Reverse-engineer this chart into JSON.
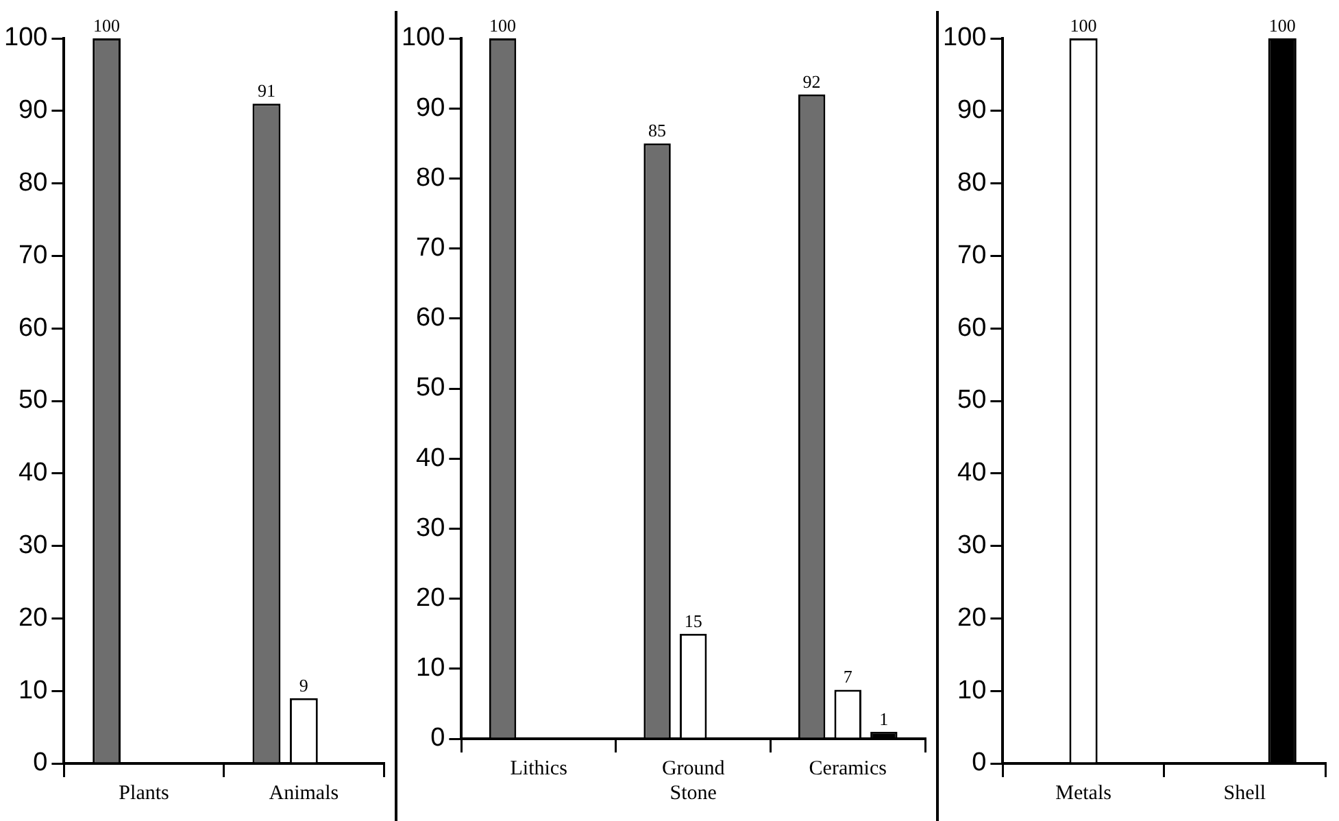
{
  "chart_data": [
    {
      "type": "bar",
      "categories": [
        "Plants",
        "Animals"
      ],
      "series": [
        {
          "color": "#6e6e6e",
          "values": [
            100,
            91
          ]
        },
        {
          "color": "#ffffff",
          "values": [
            null,
            9
          ]
        },
        {
          "color": "#000000",
          "values": [
            null,
            null
          ]
        }
      ],
      "ylim": [
        0,
        100
      ],
      "yticks": [
        0,
        10,
        20,
        30,
        40,
        50,
        60,
        70,
        80,
        90,
        100
      ],
      "grid": false,
      "legend": false,
      "data_labels": true
    },
    {
      "type": "bar",
      "categories": [
        "Lithics",
        "Ground Stone",
        "Ceramics"
      ],
      "series": [
        {
          "color": "#6e6e6e",
          "values": [
            100,
            85,
            92
          ]
        },
        {
          "color": "#ffffff",
          "values": [
            null,
            15,
            7
          ]
        },
        {
          "color": "#000000",
          "values": [
            null,
            null,
            1
          ]
        }
      ],
      "ylim": [
        0,
        100
      ],
      "yticks": [
        0,
        10,
        20,
        30,
        40,
        50,
        60,
        70,
        80,
        90,
        100
      ],
      "grid": false,
      "legend": false,
      "data_labels": true
    },
    {
      "type": "bar",
      "categories": [
        "Metals",
        "Shell"
      ],
      "series": [
        {
          "color": "#6e6e6e",
          "values": [
            null,
            null
          ]
        },
        {
          "color": "#ffffff",
          "values": [
            100,
            null
          ]
        },
        {
          "color": "#000000",
          "values": [
            null,
            100
          ]
        }
      ],
      "ylim": [
        0,
        100
      ],
      "yticks": [
        0,
        10,
        20,
        30,
        40,
        50,
        60,
        70,
        80,
        90,
        100
      ],
      "grid": false,
      "legend": false,
      "data_labels": true
    }
  ]
}
